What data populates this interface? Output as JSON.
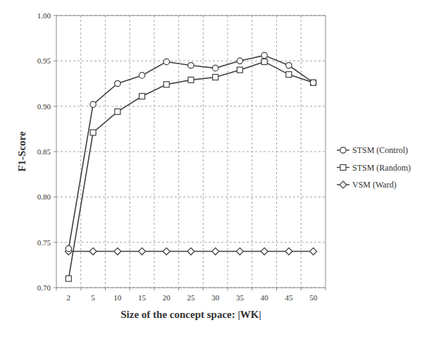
{
  "chart_data": {
    "type": "line",
    "x_label": "Size of the concept space: |WK|",
    "y_label": "F1-Score",
    "categories": [
      "2",
      "5",
      "10",
      "15",
      "20",
      "25",
      "30",
      "35",
      "40",
      "45",
      "50"
    ],
    "series": [
      {
        "name": "STSM (Control)",
        "color": "#404040",
        "marker": "circle",
        "values": [
          0.743,
          0.902,
          0.925,
          0.934,
          0.949,
          0.945,
          0.942,
          0.95,
          0.956,
          0.945,
          0.926
        ]
      },
      {
        "name": "STSM (Random)",
        "color": "#404040",
        "marker": "square",
        "values": [
          0.71,
          0.871,
          0.894,
          0.911,
          0.924,
          0.929,
          0.932,
          0.94,
          0.949,
          0.935,
          0.926
        ]
      },
      {
        "name": "VSM (Ward)",
        "color": "#404040",
        "marker": "diamond",
        "values": [
          0.74,
          0.74,
          0.74,
          0.74,
          0.74,
          0.74,
          0.74,
          0.74,
          0.74,
          0.74,
          0.74
        ]
      }
    ],
    "ylim": [
      0.7,
      1.0
    ],
    "yticks": [
      {
        "value": 0.7,
        "label": "0.70"
      },
      {
        "value": 0.75,
        "label": "0.75"
      },
      {
        "value": 0.8,
        "label": "0.80"
      },
      {
        "value": 0.85,
        "label": "0.85"
      },
      {
        "value": 0.9,
        "label": "0.90"
      },
      {
        "value": 0.95,
        "label": "0.95"
      },
      {
        "value": 1.0,
        "label": "1.00"
      }
    ],
    "grid": true,
    "legend": "right"
  }
}
